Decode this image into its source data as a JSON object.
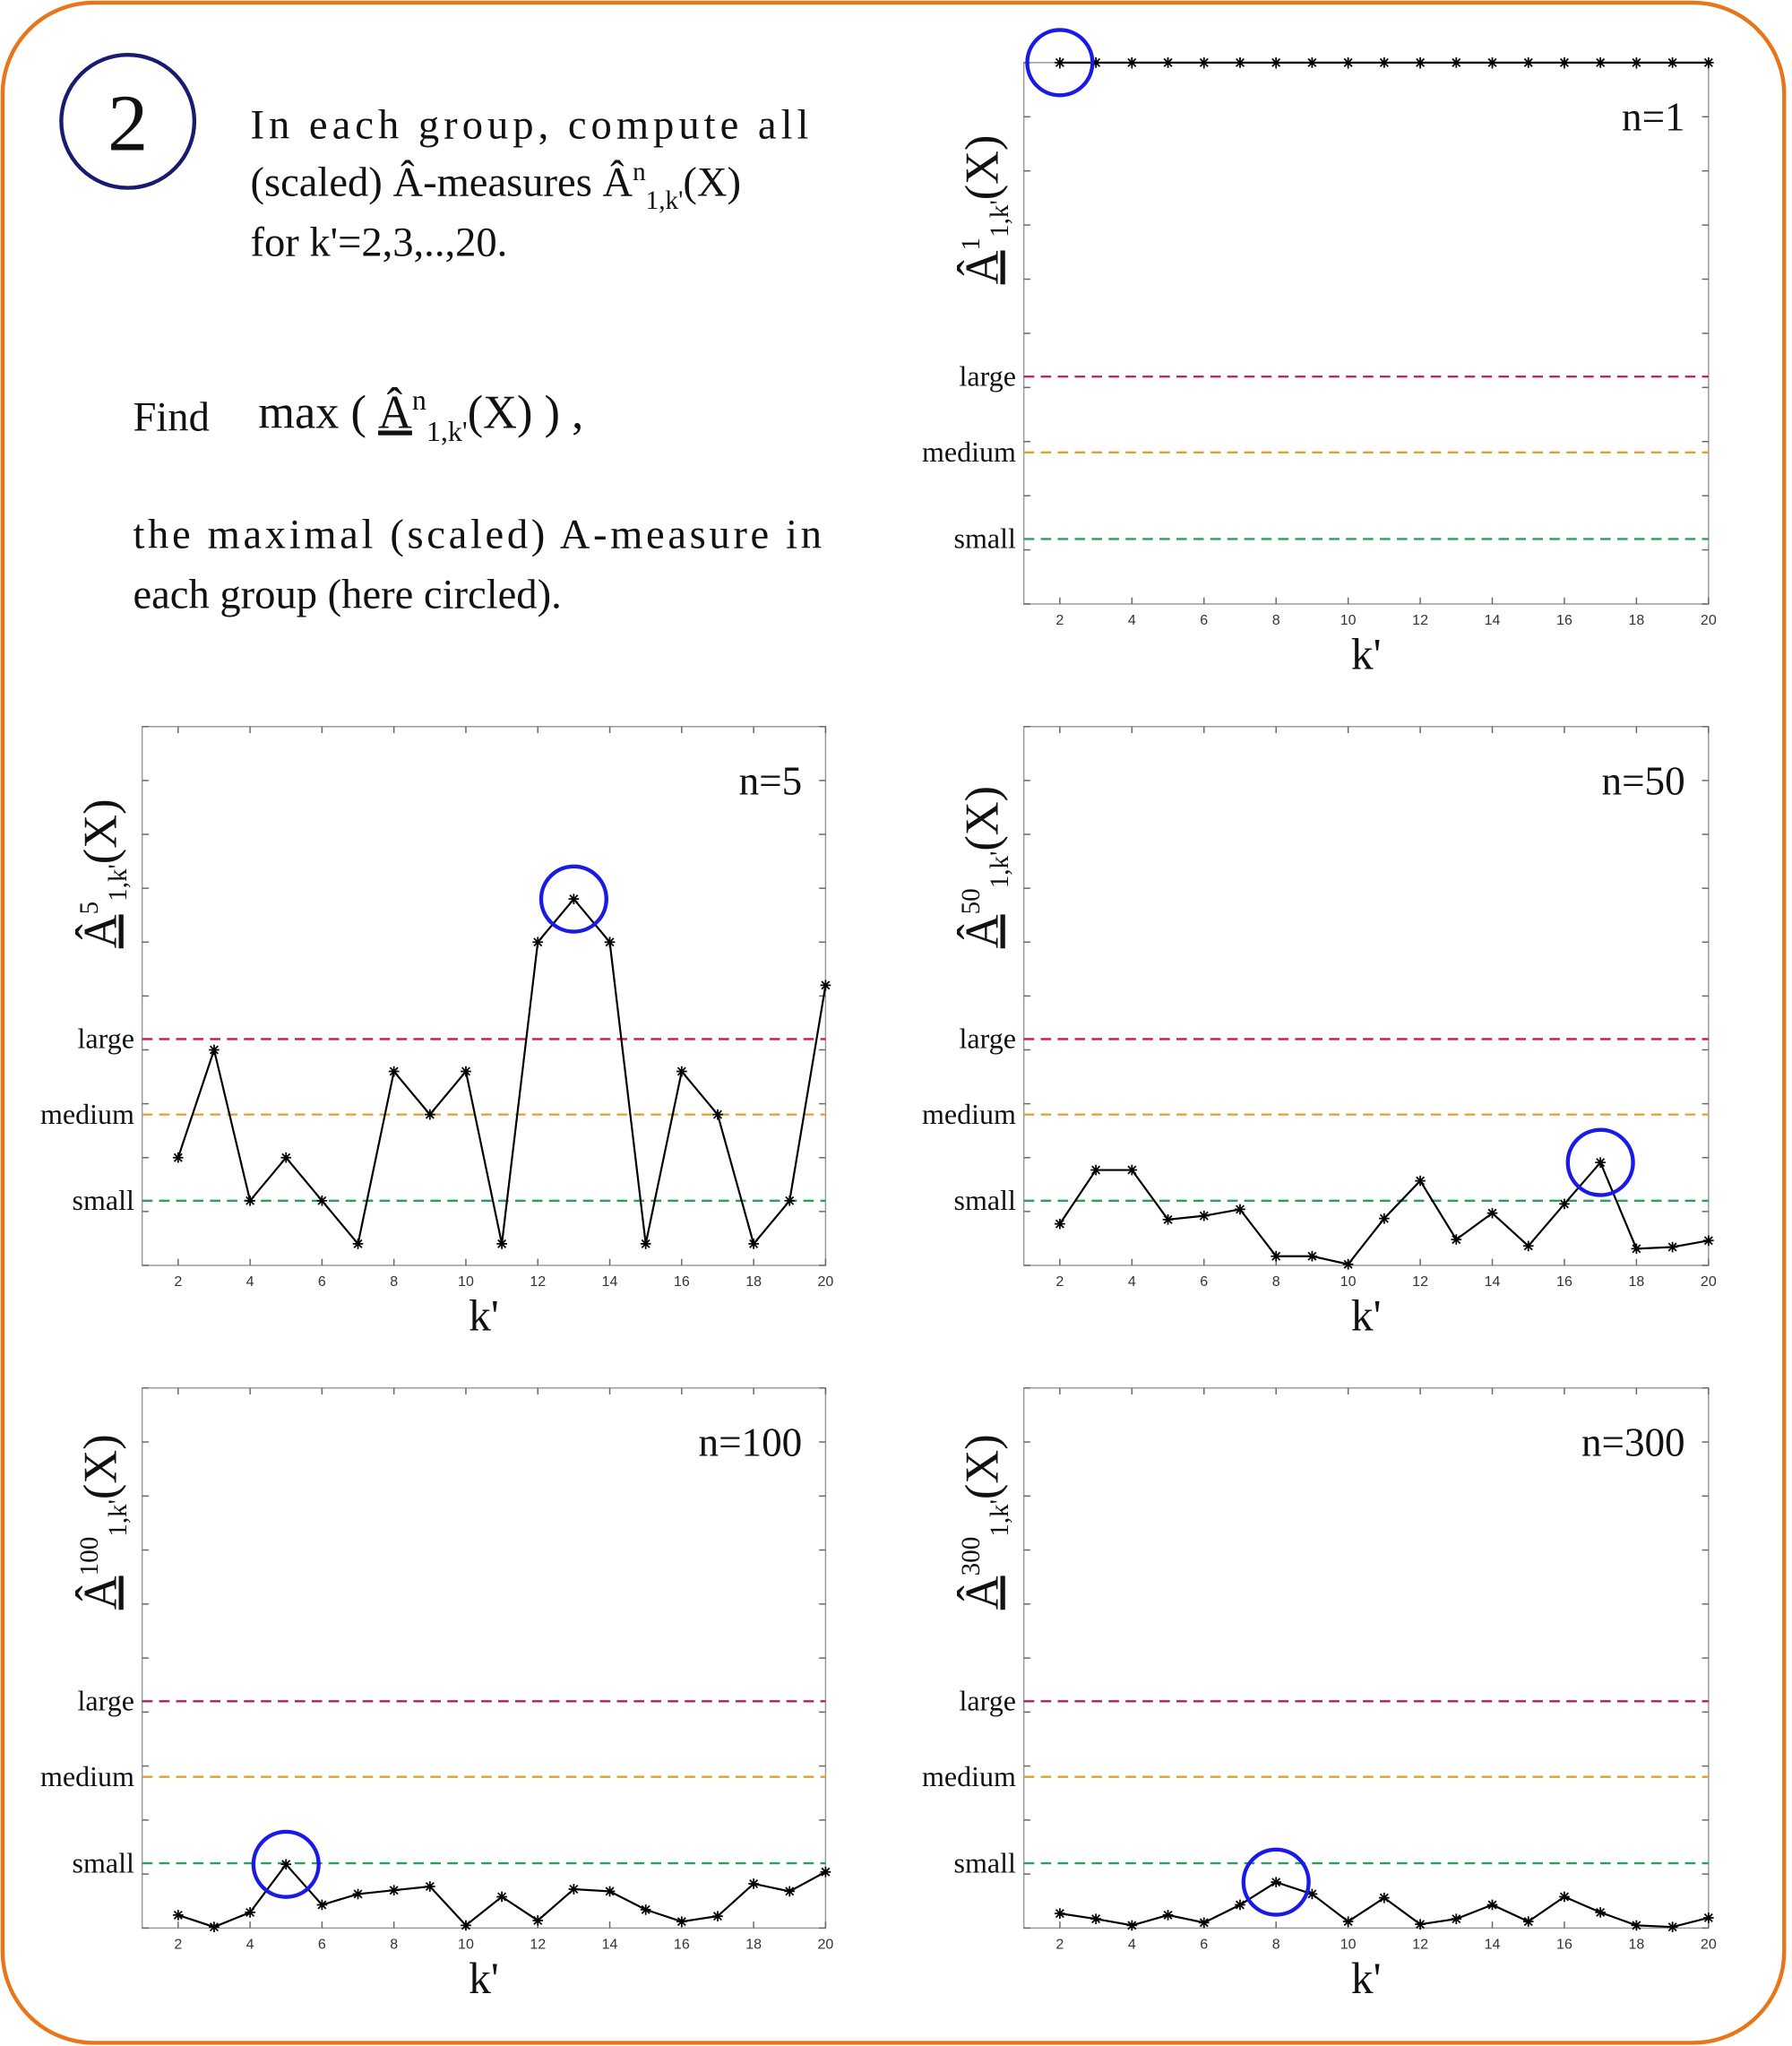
{
  "intro": {
    "step": "2",
    "line1": "In each group,  compute all",
    "line2": {
      "text": "(scaled)  Â-measures ",
      "base": "Â",
      "sup": "n",
      "sub": "1,k'",
      "arg": "(X)"
    },
    "line3": "for k'=2,3,..,20.",
    "find": {
      "word": "Find",
      "op": "max ( ",
      "base": "Â",
      "sup": "n",
      "sub": "1,k'",
      "arg": "(X)",
      "close": " ) ,"
    },
    "line4": "the maximal  (scaled)  A-measure  in",
    "line5": "each group (here circled)."
  },
  "chart_data": [
    {
      "type": "line",
      "title": "n=1",
      "xlabel": "k'",
      "ylabel": {
        "base": "Â",
        "sup": "1",
        "sub": "1,k'",
        "arg": "(X)"
      },
      "x": [
        2,
        3,
        4,
        5,
        6,
        7,
        8,
        9,
        10,
        11,
        12,
        13,
        14,
        15,
        16,
        17,
        18,
        19,
        20
      ],
      "values": [
        1,
        1,
        1,
        1,
        1,
        1,
        1,
        1,
        1,
        1,
        1,
        1,
        1,
        1,
        1,
        1,
        1,
        1,
        1
      ],
      "color": "#000000",
      "highlight_color": "#1a1ae6",
      "xlim": [
        1,
        20
      ],
      "xticks": [
        2,
        4,
        6,
        8,
        10,
        12,
        14,
        16,
        18,
        20
      ],
      "ylim": [
        0,
        1
      ],
      "yticks": [
        0,
        0.1,
        0.2,
        0.3,
        0.4,
        0.5,
        0.6,
        0.7,
        0.8,
        0.9,
        1
      ],
      "thresholds": [
        {
          "name": "large",
          "value": 0.42,
          "color": "#c2185b",
          "label_color": "#8b1a1a"
        },
        {
          "name": "medium",
          "value": 0.28,
          "color": "#e0a030",
          "label_color": "#e87722"
        },
        {
          "name": "small",
          "value": 0.12,
          "color": "#2ca05a",
          "label_color": "#1a8a1a"
        }
      ]
    },
    {
      "type": "line",
      "title": "n=5",
      "xlabel": "k'",
      "ylabel": {
        "base": "Â",
        "sup": "5",
        "sub": "1,k'",
        "arg": "(X)"
      },
      "x": [
        2,
        3,
        4,
        5,
        6,
        7,
        8,
        9,
        10,
        11,
        12,
        13,
        14,
        15,
        16,
        17,
        18,
        19,
        20
      ],
      "values": [
        0.2,
        0.4,
        0.12,
        0.2,
        0.12,
        0.04,
        0.36,
        0.28,
        0.36,
        0.04,
        0.6,
        0.68,
        0.6,
        0.04,
        0.36,
        0.28,
        0.04,
        0.12,
        0.52
      ],
      "color": "#000000",
      "highlight_color": "#1a1ae6",
      "xlim": [
        1,
        20
      ],
      "xticks": [
        2,
        4,
        6,
        8,
        10,
        12,
        14,
        16,
        18,
        20
      ],
      "ylim": [
        0,
        1
      ],
      "yticks": [
        0,
        0.1,
        0.2,
        0.3,
        0.4,
        0.5,
        0.6,
        0.7,
        0.8,
        0.9,
        1
      ],
      "thresholds": [
        {
          "name": "large",
          "value": 0.42,
          "color": "#c2185b",
          "label_color": "#8b1a1a"
        },
        {
          "name": "medium",
          "value": 0.28,
          "color": "#e0a030",
          "label_color": "#e87722"
        },
        {
          "name": "small",
          "value": 0.12,
          "color": "#2ca05a",
          "label_color": "#1a8a1a"
        }
      ]
    },
    {
      "type": "line",
      "title": "n=50",
      "xlabel": "k'",
      "ylabel": {
        "base": "Â",
        "sup": "50",
        "sub": "1,k'",
        "arg": "(X)"
      },
      "x": [
        2,
        3,
        4,
        5,
        6,
        7,
        8,
        9,
        10,
        11,
        12,
        13,
        14,
        15,
        16,
        17,
        18,
        19,
        20
      ],
      "values": [
        0.077,
        0.177,
        0.177,
        0.085,
        0.092,
        0.104,
        0.017,
        0.017,
        0.002,
        0.087,
        0.157,
        0.048,
        0.097,
        0.036,
        0.114,
        0.191,
        0.031,
        0.034,
        0.046
      ],
      "color": "#000000",
      "highlight_color": "#1a1ae6",
      "xlim": [
        1,
        20
      ],
      "xticks": [
        2,
        4,
        6,
        8,
        10,
        12,
        14,
        16,
        18,
        20
      ],
      "ylim": [
        0,
        1
      ],
      "yticks": [
        0,
        0.1,
        0.2,
        0.3,
        0.4,
        0.5,
        0.6,
        0.7,
        0.8,
        0.9,
        1
      ],
      "thresholds": [
        {
          "name": "large",
          "value": 0.42,
          "color": "#c2185b",
          "label_color": "#8b1a1a"
        },
        {
          "name": "medium",
          "value": 0.28,
          "color": "#e0a030",
          "label_color": "#e87722"
        },
        {
          "name": "small",
          "value": 0.12,
          "color": "#2ca05a",
          "label_color": "#1a8a1a"
        }
      ]
    },
    {
      "type": "line",
      "title": "n=100",
      "xlabel": "k'",
      "ylabel": {
        "base": "Â",
        "sup": "100",
        "sub": "1,k'",
        "arg": "(X)"
      },
      "x": [
        2,
        3,
        4,
        5,
        6,
        7,
        8,
        9,
        10,
        11,
        12,
        13,
        14,
        15,
        16,
        17,
        18,
        19,
        20
      ],
      "values": [
        0.024,
        0.002,
        0.029,
        0.118,
        0.043,
        0.063,
        0.07,
        0.077,
        0.005,
        0.058,
        0.014,
        0.072,
        0.068,
        0.034,
        0.012,
        0.022,
        0.082,
        0.068,
        0.104
      ],
      "color": "#000000",
      "highlight_color": "#1a1ae6",
      "xlim": [
        1,
        20
      ],
      "xticks": [
        2,
        4,
        6,
        8,
        10,
        12,
        14,
        16,
        18,
        20
      ],
      "ylim": [
        0,
        1
      ],
      "yticks": [
        0,
        0.1,
        0.2,
        0.3,
        0.4,
        0.5,
        0.6,
        0.7,
        0.8,
        0.9,
        1
      ],
      "thresholds": [
        {
          "name": "large",
          "value": 0.42,
          "color": "#c2185b",
          "label_color": "#8b1a1a"
        },
        {
          "name": "medium",
          "value": 0.28,
          "color": "#e0a030",
          "label_color": "#e87722"
        },
        {
          "name": "small",
          "value": 0.12,
          "color": "#2ca05a",
          "label_color": "#1a8a1a"
        }
      ]
    },
    {
      "type": "line",
      "title": "n=300",
      "xlabel": "k'",
      "ylabel": {
        "base": "Â",
        "sup": "300",
        "sub": "1,k'",
        "arg": "(X)"
      },
      "x": [
        2,
        3,
        4,
        5,
        6,
        7,
        8,
        9,
        10,
        11,
        12,
        13,
        14,
        15,
        16,
        17,
        18,
        19,
        20
      ],
      "values": [
        0.027,
        0.017,
        0.005,
        0.024,
        0.01,
        0.043,
        0.085,
        0.063,
        0.012,
        0.056,
        0.007,
        0.017,
        0.043,
        0.012,
        0.058,
        0.029,
        0.005,
        0.002,
        0.019
      ],
      "color": "#000000",
      "highlight_color": "#1a1ae6",
      "xlim": [
        1,
        20
      ],
      "xticks": [
        2,
        4,
        6,
        8,
        10,
        12,
        14,
        16,
        18,
        20
      ],
      "ylim": [
        0,
        1
      ],
      "yticks": [
        0,
        0.1,
        0.2,
        0.3,
        0.4,
        0.5,
        0.6,
        0.7,
        0.8,
        0.9,
        1
      ],
      "thresholds": [
        {
          "name": "large",
          "value": 0.42,
          "color": "#c2185b",
          "label_color": "#8b1a1a"
        },
        {
          "name": "medium",
          "value": 0.28,
          "color": "#e0a030",
          "label_color": "#e87722"
        },
        {
          "name": "small",
          "value": 0.12,
          "color": "#2ca05a",
          "label_color": "#1a8a1a"
        }
      ]
    }
  ]
}
